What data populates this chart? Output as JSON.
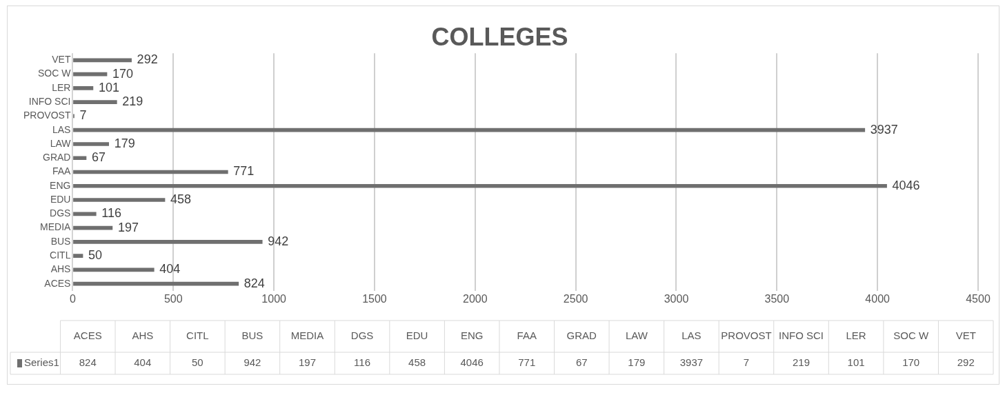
{
  "chart_data": [
    {
      "type": "bar",
      "orientation": "horizontal",
      "title": "COLLEGES",
      "categories": [
        "VET",
        "SOC W",
        "LER",
        "INFO SCI",
        "PROVOST",
        "LAS",
        "LAW",
        "GRAD",
        "FAA",
        "ENG",
        "EDU",
        "DGS",
        "MEDIA",
        "BUS",
        "CITL",
        "AHS",
        "ACES"
      ],
      "series": [
        {
          "color": "#6f6f6f",
          "values": [
            292,
            170,
            101,
            219,
            7,
            3937,
            179,
            67,
            771,
            4046,
            458,
            116,
            197,
            942,
            50,
            404,
            824
          ]
        }
      ],
      "xlim": [
        0,
        4500
      ],
      "xticks": [
        0,
        500,
        1000,
        1500,
        2000,
        2500,
        3000,
        3500,
        4000,
        4500
      ],
      "grid": "x",
      "data_labels": true
    },
    {
      "type": "other",
      "categories": [
        "ACES",
        "AHS",
        "CITL",
        "BUS",
        "MEDIA",
        "DGS",
        "EDU",
        "ENG",
        "FAA",
        "GRAD",
        "LAW",
        "LAS",
        "PROVOST",
        "INFO SCI",
        "LER",
        "SOC W",
        "VET"
      ],
      "series": [
        {
          "name": "Series1",
          "color": "#6f6f6f",
          "values": [
            824,
            404,
            50,
            942,
            197,
            116,
            458,
            4046,
            771,
            67,
            179,
            3937,
            7,
            219,
            101,
            170,
            292
          ]
        }
      ],
      "data_labels": true
    }
  ]
}
